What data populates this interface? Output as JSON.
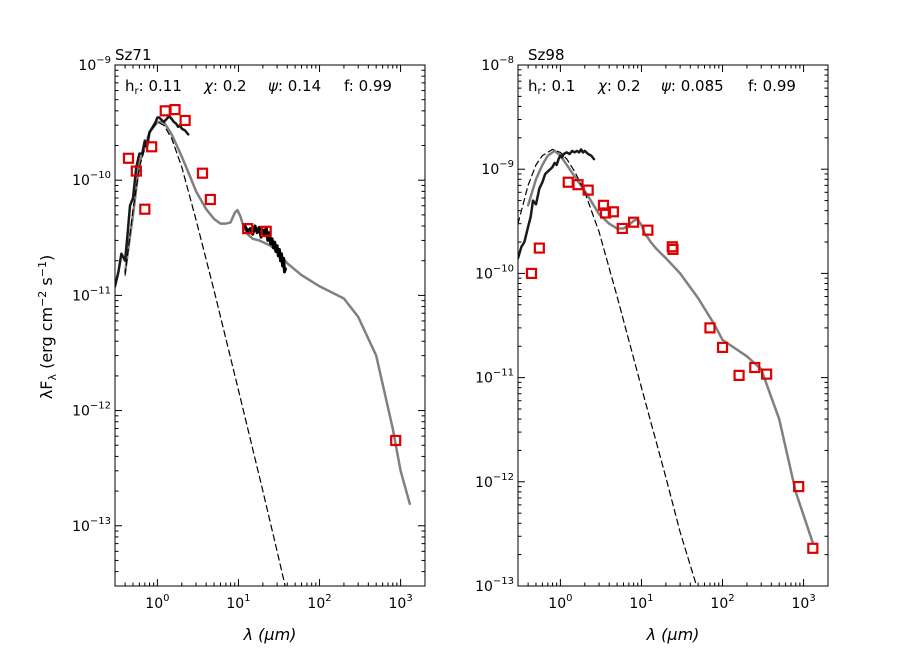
{
  "figure": {
    "ylabel": "λF",
    "ylabel_sub": "λ",
    "ylabel_units": "(erg cm",
    "ylabel_exp1": "−2",
    "ylabel_mid": " s",
    "ylabel_exp2": "−1",
    "ylabel_end": ")"
  },
  "colors": {
    "model": "#808080",
    "spectrum": "#1a1a1a",
    "photosphere": "#000000",
    "points": "#dd0000"
  },
  "chart_data": [
    {
      "type": "scatter",
      "title": "Sz71",
      "xlabel": "λ (μm)",
      "xscale": "log",
      "yscale": "log",
      "xlim": [
        0.3,
        2000
      ],
      "ylim": [
        3e-14,
        1e-09
      ],
      "xticks": [
        {
          "value": 1,
          "label": "10",
          "exp": "0"
        },
        {
          "value": 10,
          "label": "10",
          "exp": "1"
        },
        {
          "value": 100,
          "label": "10",
          "exp": "2"
        },
        {
          "value": 1000,
          "label": "10",
          "exp": "3"
        }
      ],
      "yticks": [
        {
          "value": 1e-13,
          "label": "10",
          "exp": "−13"
        },
        {
          "value": 1e-12,
          "label": "10",
          "exp": "−12"
        },
        {
          "value": 1e-11,
          "label": "10",
          "exp": "−11"
        },
        {
          "value": 1e-10,
          "label": "10",
          "exp": "−10"
        },
        {
          "value": 1e-09,
          "label": "10",
          "exp": "−9"
        }
      ],
      "params": [
        {
          "name": "h",
          "sub": "r",
          "value": ": 0.11"
        },
        {
          "name": "χ",
          "sub": "",
          "value": ": 0.2"
        },
        {
          "name": "ψ",
          "sub": "",
          "value": ": 0.14"
        },
        {
          "name": "f",
          "sub": "",
          "value": ": 0.99"
        }
      ],
      "series": [
        {
          "name": "model",
          "style": "solid-gray",
          "x": [
            0.4,
            0.5,
            0.6,
            0.8,
            1.0,
            1.2,
            1.5,
            2.0,
            2.5,
            3.0,
            4.0,
            5.0,
            6.0,
            7.0,
            8.0,
            9.0,
            9.7,
            10.5,
            11.5,
            13,
            15,
            18,
            20,
            25,
            30,
            40,
            60,
            100,
            200,
            300,
            500,
            800,
            1000,
            1300
          ],
          "y": [
            1.6e-11,
            5e-11,
            1.4e-10,
            2.6e-10,
            3.2e-10,
            3.2e-10,
            2.5e-10,
            1.6e-10,
            1.1e-10,
            8e-11,
            5.6e-11,
            4.6e-11,
            4.2e-11,
            4.2e-11,
            4.3e-11,
            5.2e-11,
            5.5e-11,
            4.9e-11,
            4e-11,
            3.4e-11,
            3.1e-11,
            3e-11,
            2.9e-11,
            2.7e-11,
            2.4e-11,
            1.9e-11,
            1.5e-11,
            1.2e-11,
            9.4e-12,
            6.5e-12,
            3e-12,
            7e-13,
            3e-13,
            1.55e-13
          ]
        },
        {
          "name": "optical spectrum",
          "style": "solid-dark",
          "x": [
            0.3,
            0.33,
            0.36,
            0.4,
            0.43,
            0.46,
            0.5,
            0.55,
            0.6,
            0.65,
            0.7,
            0.75,
            0.8,
            0.85,
            0.9,
            0.95,
            1.0,
            1.05,
            1.1,
            1.2,
            1.3,
            1.4,
            1.5,
            1.6,
            1.7,
            1.8,
            1.9,
            2.0,
            2.2,
            2.4
          ],
          "y": [
            1.2e-11,
            1.6e-11,
            2.3e-11,
            2e-11,
            3.5e-11,
            6e-11,
            7e-11,
            1.3e-10,
            1.7e-10,
            1.7e-10,
            2.2e-10,
            2e-10,
            2.6e-10,
            2.8e-10,
            3e-10,
            3.2e-10,
            3.5e-10,
            3.5e-10,
            3.4e-10,
            3.2e-10,
            3.4e-10,
            3.6e-10,
            3.4e-10,
            3.2e-10,
            3.1e-10,
            2.9e-10,
            3e-10,
            2.8e-10,
            2.7e-10,
            2.5e-10
          ]
        },
        {
          "name": "IRS spectrum",
          "style": "solid-black",
          "x": [
            12,
            13,
            14,
            15,
            16,
            17,
            18,
            19,
            20,
            21,
            22,
            23,
            24,
            25,
            26,
            27,
            28,
            29,
            30,
            31,
            32,
            33,
            34,
            35,
            36,
            37,
            38
          ],
          "y": [
            4e-11,
            3.6e-11,
            3.8e-11,
            3.4e-11,
            4e-11,
            3.5e-11,
            3.9e-11,
            3.2e-11,
            3.7e-11,
            3.3e-11,
            3.9e-11,
            3e-11,
            3.5e-11,
            2.8e-11,
            3.1e-11,
            2.6e-11,
            2.9e-11,
            2.4e-11,
            2.7e-11,
            2.2e-11,
            2.5e-11,
            2e-11,
            2.3e-11,
            1.8e-11,
            2.1e-11,
            1.6e-11,
            1.7e-11
          ]
        },
        {
          "name": "photosphere",
          "style": "dashed-black",
          "x": [
            0.4,
            0.5,
            0.6,
            0.8,
            1.0,
            1.2,
            1.5,
            2.0,
            3.0,
            5.0,
            10,
            20,
            30,
            40
          ],
          "y": [
            1.5e-11,
            5.5e-11,
            1.3e-10,
            2.6e-10,
            3.2e-10,
            3e-10,
            2.3e-10,
            1.3e-10,
            4.5e-11,
            1.1e-11,
            1.5e-12,
            2e-13,
            6e-14,
            2.5e-14
          ]
        },
        {
          "name": "photometry",
          "style": "open-square-red",
          "x": [
            0.44,
            0.55,
            0.7,
            0.85,
            1.25,
            1.65,
            2.2,
            3.6,
            4.5,
            13,
            22,
            870
          ],
          "y": [
            1.55e-10,
            1.2e-10,
            5.6e-11,
            1.95e-10,
            4e-10,
            4.1e-10,
            3.3e-10,
            1.15e-10,
            6.8e-11,
            3.8e-11,
            3.6e-11,
            5.5e-13
          ]
        }
      ]
    },
    {
      "type": "scatter",
      "title": "Sz98",
      "xlabel": "λ (μm)",
      "xscale": "log",
      "yscale": "log",
      "xlim": [
        0.3,
        2000
      ],
      "ylim": [
        1e-13,
        1e-08
      ],
      "xticks": [
        {
          "value": 1,
          "label": "10",
          "exp": "0"
        },
        {
          "value": 10,
          "label": "10",
          "exp": "1"
        },
        {
          "value": 100,
          "label": "10",
          "exp": "2"
        },
        {
          "value": 1000,
          "label": "10",
          "exp": "3"
        }
      ],
      "yticks": [
        {
          "value": 1e-13,
          "label": "10",
          "exp": "−13"
        },
        {
          "value": 1e-12,
          "label": "10",
          "exp": "−12"
        },
        {
          "value": 1e-11,
          "label": "10",
          "exp": "−11"
        },
        {
          "value": 1e-10,
          "label": "10",
          "exp": "−10"
        },
        {
          "value": 1e-09,
          "label": "10",
          "exp": "−9"
        },
        {
          "value": 1e-08,
          "label": "10",
          "exp": "−8"
        }
      ],
      "params": [
        {
          "name": "h",
          "sub": "r",
          "value": ": 0.1"
        },
        {
          "name": "χ",
          "sub": "",
          "value": ": 0.2"
        },
        {
          "name": "ψ",
          "sub": "",
          "value": ": 0.085"
        },
        {
          "name": "f",
          "sub": "",
          "value": ": 0.99"
        }
      ],
      "series": [
        {
          "name": "model",
          "style": "solid-gray",
          "x": [
            0.4,
            0.5,
            0.6,
            0.7,
            0.85,
            1.0,
            1.2,
            1.5,
            2.0,
            3.0,
            4.0,
            5.0,
            6.0,
            7.0,
            8.0,
            9.0,
            10,
            11,
            12,
            13,
            15,
            20,
            30,
            50,
            80,
            100,
            200,
            300,
            500,
            800,
            1300
          ],
          "y": [
            4.5e-10,
            8e-10,
            1.1e-09,
            1.35e-09,
            1.5e-09,
            1.35e-09,
            1.1e-09,
            8.5e-10,
            6.2e-10,
            3.7e-10,
            3e-10,
            2.7e-10,
            2.7e-10,
            2.9e-10,
            3.2e-10,
            3.3e-10,
            2.9e-10,
            2.4e-10,
            2.2e-10,
            2e-10,
            1.75e-10,
            1.4e-10,
            1e-10,
            5.8e-11,
            3.2e-11,
            2.3e-11,
            1.6e-11,
            1.2e-11,
            4e-12,
            8e-13,
            2.6e-13
          ]
        },
        {
          "name": "optical spectrum",
          "style": "solid-dark",
          "x": [
            0.3,
            0.33,
            0.36,
            0.4,
            0.43,
            0.46,
            0.5,
            0.55,
            0.6,
            0.65,
            0.7,
            0.75,
            0.8,
            0.85,
            0.9,
            0.95,
            1.0,
            1.05,
            1.1,
            1.2,
            1.3,
            1.4,
            1.5,
            1.6,
            1.7,
            1.8,
            1.9,
            2.0,
            2.2,
            2.4,
            2.6
          ],
          "y": [
            1.4e-10,
            1.8e-10,
            2e-10,
            2.8e-10,
            3.5e-10,
            5e-10,
            4.6e-10,
            6.5e-10,
            7.5e-10,
            9e-10,
            9.5e-10,
            1e-09,
            1.05e-09,
            1.15e-09,
            1.1e-09,
            1.25e-09,
            1.35e-09,
            1.3e-09,
            1.4e-09,
            1.45e-09,
            1.4e-09,
            1.5e-09,
            1.45e-09,
            1.5e-09,
            1.45e-09,
            1.55e-09,
            1.45e-09,
            1.5e-09,
            1.4e-09,
            1.35e-09,
            1.25e-09
          ]
        },
        {
          "name": "photosphere",
          "style": "dashed-black",
          "x": [
            0.3,
            0.4,
            0.5,
            0.6,
            0.8,
            1.0,
            1.2,
            1.5,
            2.0,
            3.0,
            5.0,
            10,
            20,
            30,
            50
          ],
          "y": [
            3e-10,
            7e-10,
            1.1e-09,
            1.35e-09,
            1.55e-09,
            1.45e-09,
            1.25e-09,
            9.5e-10,
            6e-10,
            2.5e-10,
            6e-11,
            8e-12,
            1.1e-12,
            3.3e-13,
            9e-14
          ]
        },
        {
          "name": "photometry",
          "style": "open-square-red",
          "x": [
            0.44,
            0.55,
            1.25,
            1.65,
            2.2,
            3.4,
            3.6,
            4.5,
            5.8,
            8.0,
            12,
            24,
            24.5,
            70,
            100,
            160,
            250,
            350,
            870,
            1300
          ],
          "y": [
            1e-10,
            1.75e-10,
            7.5e-10,
            7.1e-10,
            6.3e-10,
            4.5e-10,
            3.8e-10,
            3.9e-10,
            2.7e-10,
            3.1e-10,
            2.6e-10,
            1.8e-10,
            1.7e-10,
            3e-11,
            1.95e-11,
            1.05e-11,
            1.25e-11,
            1.08e-11,
            9e-13,
            2.3e-13
          ]
        }
      ]
    }
  ]
}
